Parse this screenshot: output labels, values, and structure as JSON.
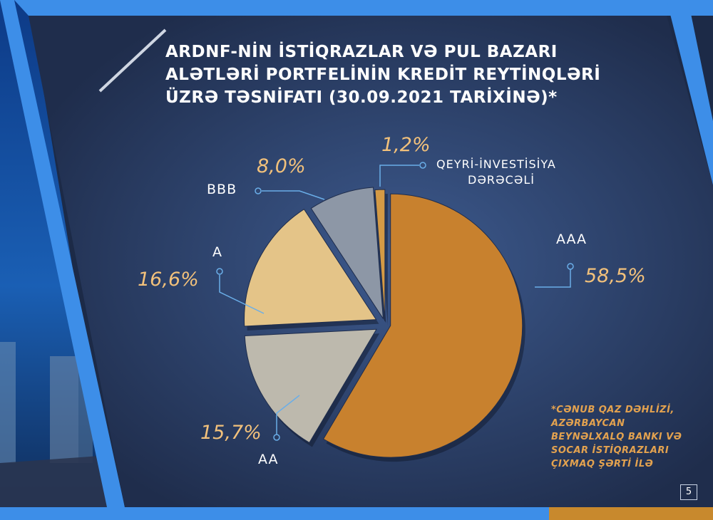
{
  "title_lines": [
    "ARDNF-NİN İSTİQRAZLAR VƏ PUL BAZARI",
    "ALƏTLƏRİ PORTFELİNİN KREDİT REYTİNQLƏRİ",
    "ÜZRƏ TƏSNİFATI (30.09.2021 TARİXİNƏ)*"
  ],
  "chart_data": {
    "type": "pie",
    "title": "ARDNF-NİN İSTİQRAZLAR VƏ PUL BAZARI ALƏTLƏRİ PORTFELİNİN KREDİT REYTİNQLƏRİ ÜZRƏ TƏSNİFATI (30.09.2021 TARİXİNƏ)*",
    "slices": [
      {
        "label": "AAA",
        "value": 58.5,
        "value_label": "58,5%",
        "color": "#c8812e"
      },
      {
        "label": "AA",
        "value": 15.7,
        "value_label": "15,7%",
        "color": "#bdb9ad"
      },
      {
        "label": "A",
        "value": 16.6,
        "value_label": "16,6%",
        "color": "#e4c488"
      },
      {
        "label": "BBB",
        "value": 8.0,
        "value_label": "8,0%",
        "color": "#8d97a6"
      },
      {
        "label_lines": [
          "QEYRİ-İNVESTİSİYA",
          "DƏRƏCƏLİ"
        ],
        "value": 1.2,
        "value_label": "1,2%",
        "color": "#d49a45"
      }
    ]
  },
  "footnote_lines": [
    "*CƏNUB QAZ DƏHLİZİ,",
    "AZƏRBAYCAN",
    "BEYNƏLXALQ BANKI VƏ",
    "SOCAR İSTİQRAZLARI",
    "ÇIXMAQ ŞƏRTİ İLƏ"
  ],
  "page_number": "5",
  "colors": {
    "frame_blue": "#3d8ee8",
    "panel_dark": "#22304f",
    "accent_gold": "#c8892d",
    "leader_line": "#6aaee8"
  }
}
